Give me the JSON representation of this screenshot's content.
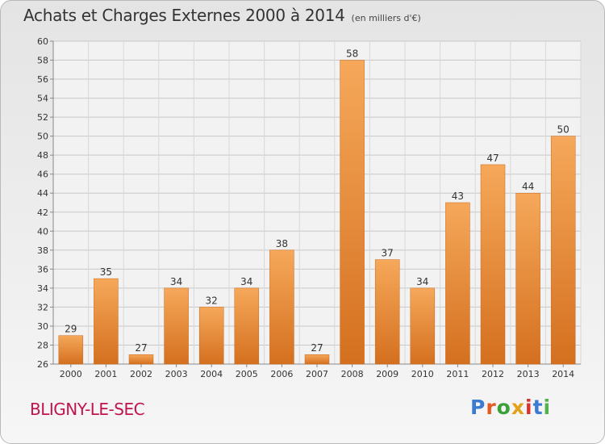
{
  "header": {
    "title": "Achats et Charges Externes 2000 à 2014",
    "subtitle": "(en milliers d'€)"
  },
  "footer": {
    "town": "BLIGNY-LE-SEC",
    "brand": "Proxiti",
    "brand_letters": [
      "P",
      "r",
      "o",
      "x",
      "i",
      "t",
      "i"
    ],
    "brand_colors": [
      "#3b7bd1",
      "#e35a23",
      "#3aa03a",
      "#e3a21a",
      "#d9322f",
      "#3b7bd1",
      "#52b34a"
    ]
  },
  "chart_data": {
    "type": "bar",
    "categories": [
      "2000",
      "2001",
      "2002",
      "2003",
      "2004",
      "2005",
      "2006",
      "2007",
      "2008",
      "2009",
      "2010",
      "2011",
      "2012",
      "2013",
      "2014"
    ],
    "values": [
      29,
      35,
      27,
      34,
      32,
      34,
      38,
      27,
      58,
      37,
      34,
      43,
      47,
      44,
      50
    ],
    "ylim": [
      26,
      60
    ],
    "yticks": [
      26,
      28,
      30,
      32,
      34,
      36,
      38,
      40,
      42,
      44,
      46,
      48,
      50,
      52,
      54,
      56,
      58,
      60
    ],
    "grid": true,
    "bar_color": "#f0923a",
    "bar_color_light": "#f6a85a",
    "bar_color_dark": "#d96f1c"
  }
}
